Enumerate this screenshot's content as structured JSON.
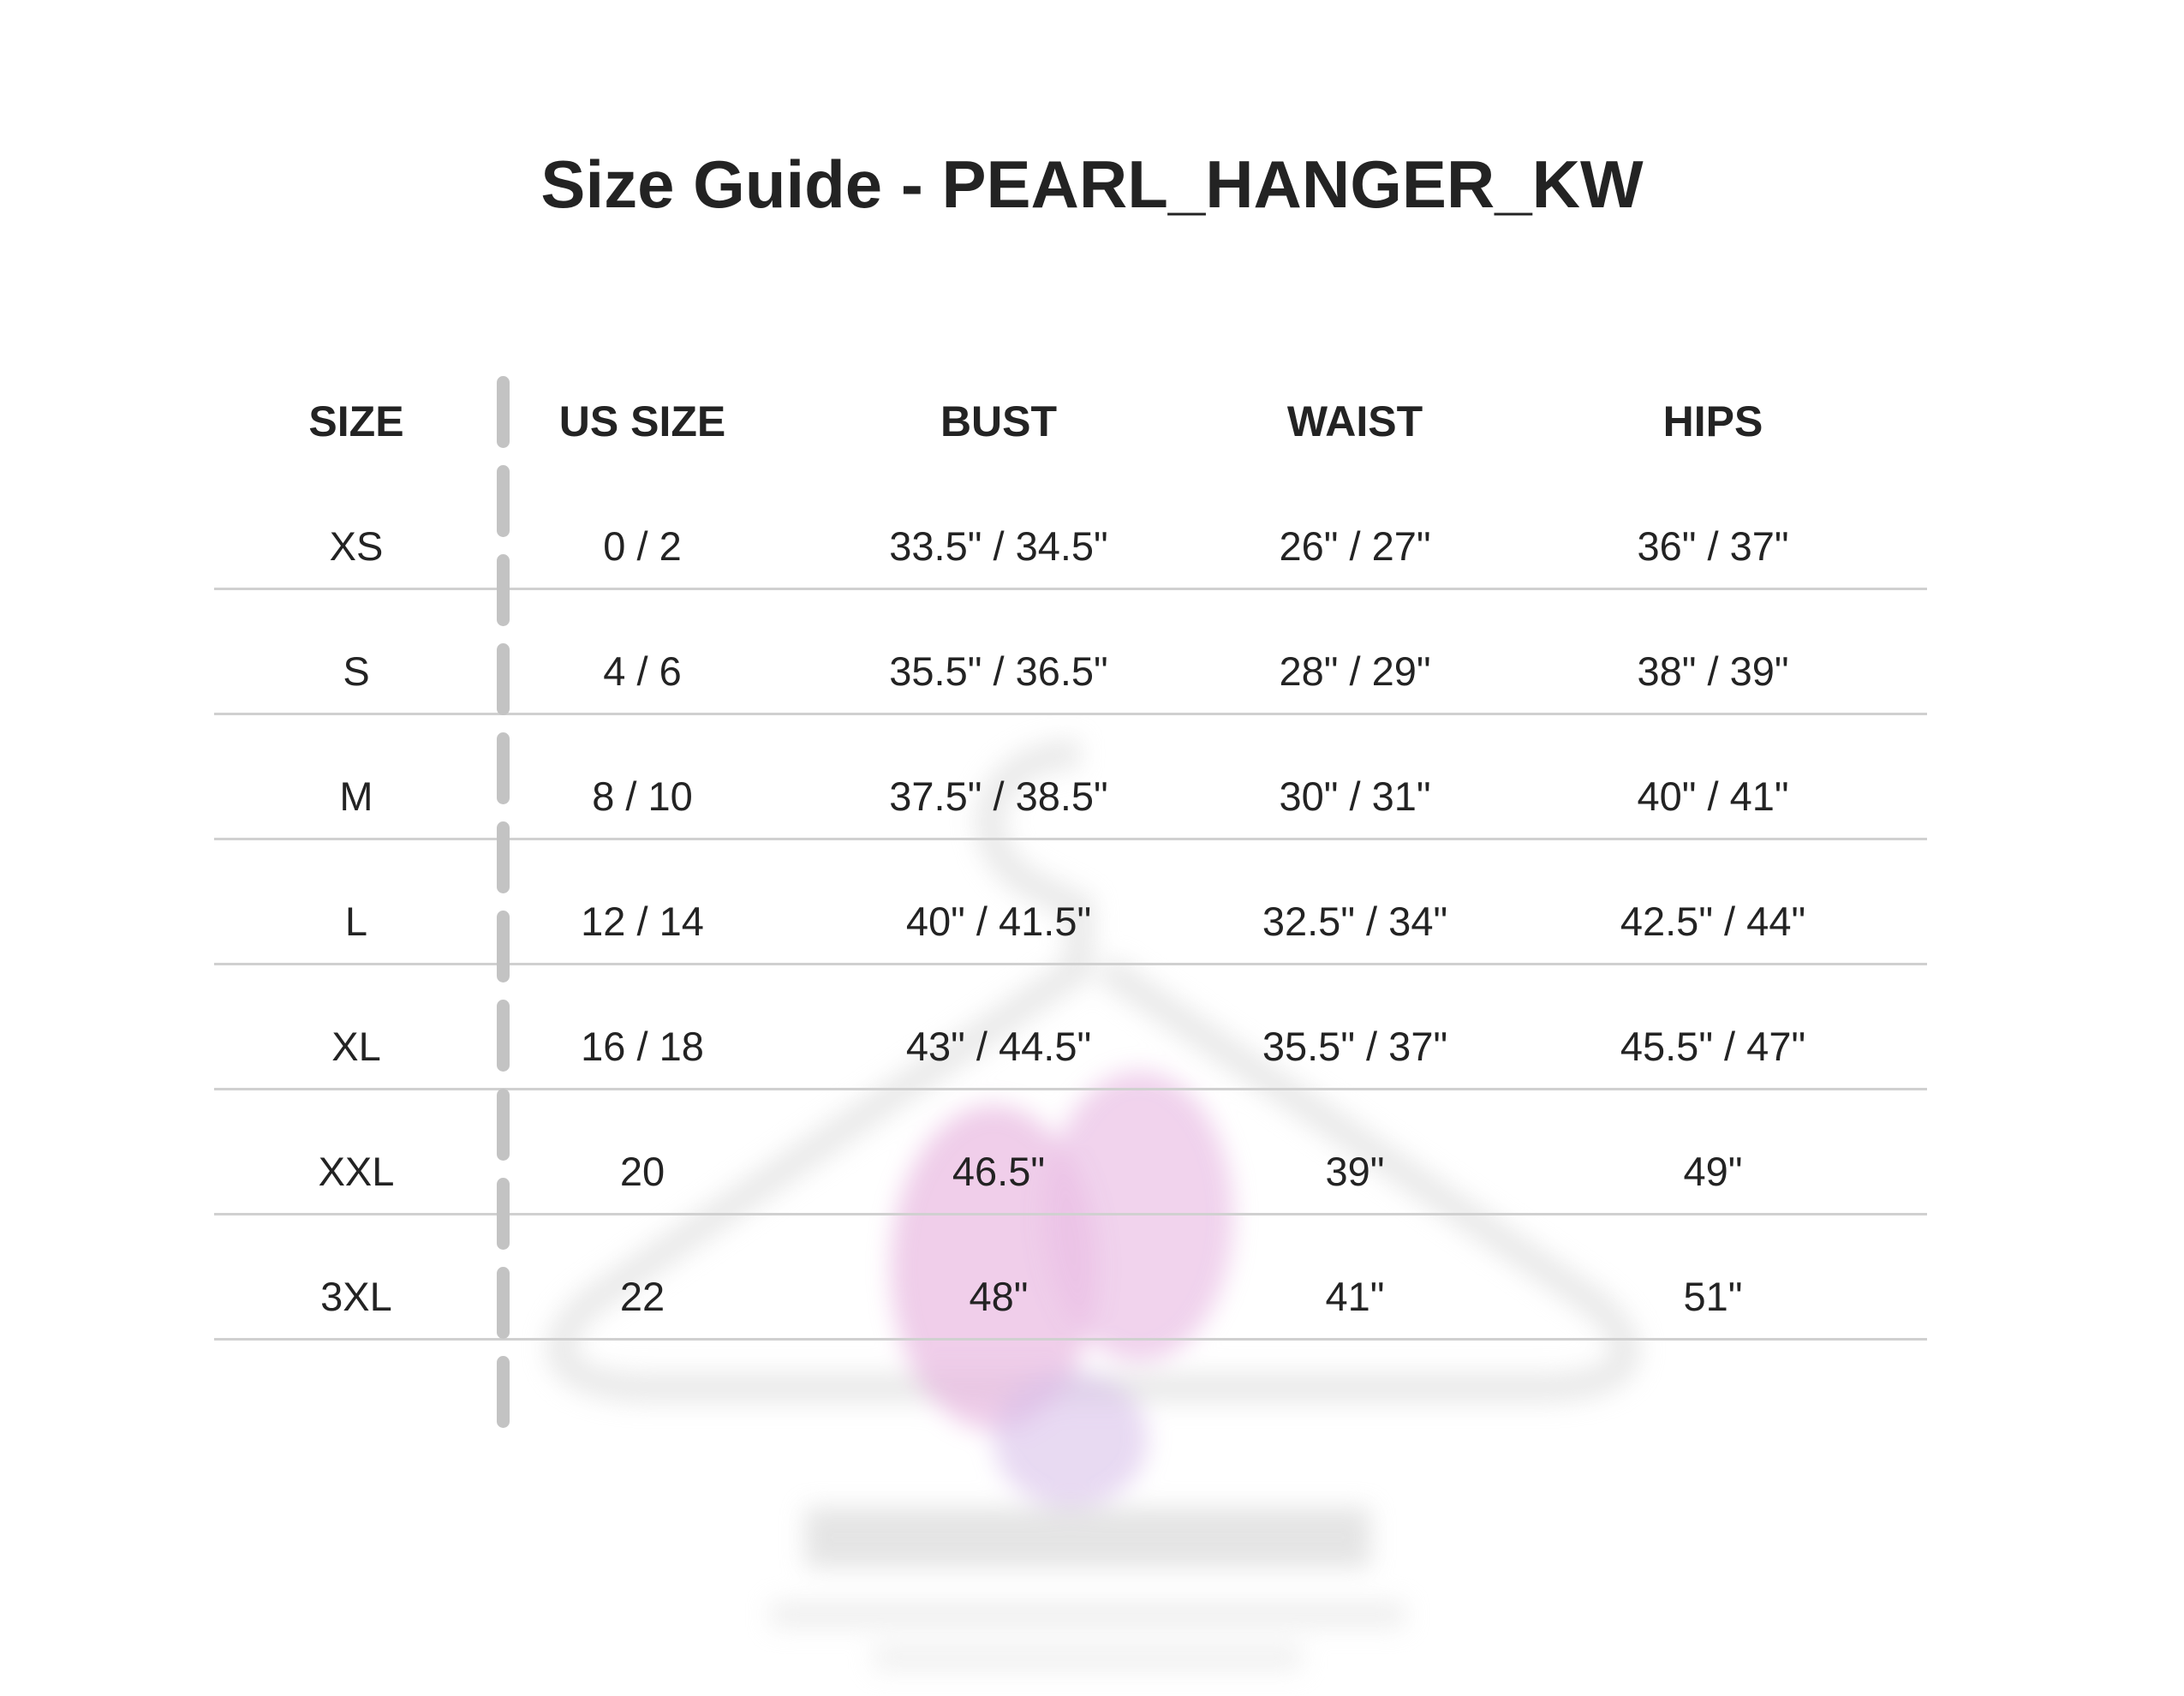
{
  "title": "Size Guide - PEARL_HANGER_KW",
  "table": {
    "headers": [
      "SIZE",
      "US SIZE",
      "BUST",
      "WAIST",
      "HIPS"
    ],
    "rows": [
      [
        "XS",
        "0 / 2",
        "33.5\" / 34.5\"",
        "26\" / 27\"",
        "36\" / 37\""
      ],
      [
        "S",
        "4 / 6",
        "35.5\" / 36.5\"",
        "28\" / 29\"",
        "38\" / 39\""
      ],
      [
        "M",
        "8 / 10",
        "37.5\" / 38.5\"",
        "30\" / 31\"",
        "40\" / 41\""
      ],
      [
        "L",
        "12 / 14",
        "40\" / 41.5\"",
        "32.5\" / 34\"",
        "42.5\" / 44\""
      ],
      [
        "XL",
        "16 / 18",
        "43\" / 44.5\"",
        "35.5\" / 37\"",
        "45.5\" / 47\""
      ],
      [
        "XXL",
        "20",
        "46.5\"",
        "39\"",
        "49\""
      ],
      [
        "3XL",
        "22",
        "48\"",
        "41\"",
        "51\""
      ]
    ]
  },
  "colors": {
    "text": "#232323",
    "rule": "#d0d0d0",
    "divider": "#c3c3c3",
    "watermark_accent": "#d67fc8"
  }
}
